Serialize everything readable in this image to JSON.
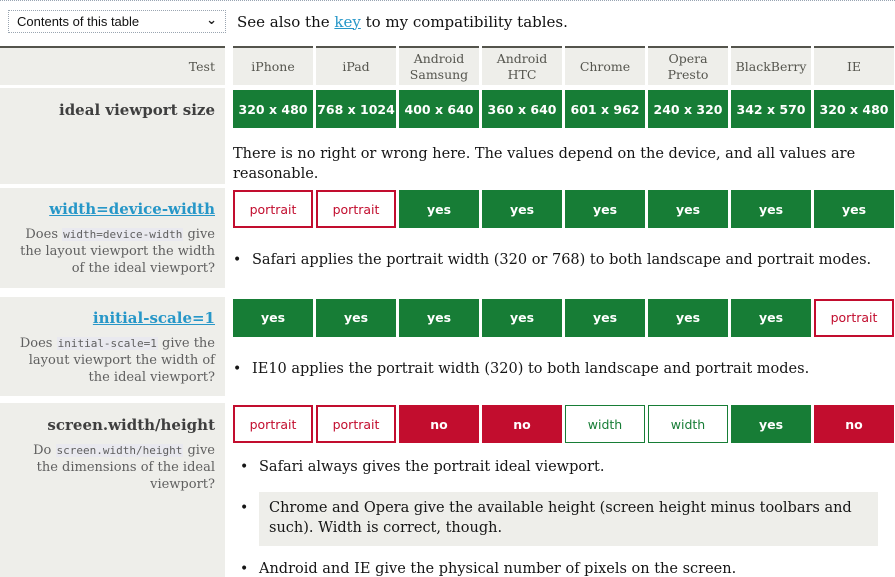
{
  "icons": {
    "chevron_down": "⌄",
    "bullet": "•"
  },
  "colors": {
    "green": "#177d36",
    "red": "#c20d2e",
    "link_blue": "#2797c8",
    "row_bg": "#eeeeea"
  },
  "toolbar": {
    "select_value": "Contents of this table",
    "see_also_prefix": "See also the ",
    "key_link_label": "key",
    "see_also_suffix": " to my compatibility tables."
  },
  "table": {
    "header": {
      "test_label": "Test",
      "columns": [
        "iPhone",
        "iPad",
        "Android Samsung",
        "Android HTC",
        "Chrome",
        "Opera Presto",
        "BlackBerry",
        "IE"
      ]
    },
    "sections": [
      {
        "title": "ideal viewport size",
        "cells": [
          {
            "text": "320 x 480",
            "state": "green-solid"
          },
          {
            "text": "768 x 1024",
            "state": "green-solid"
          },
          {
            "text": "400 x 640",
            "state": "green-solid"
          },
          {
            "text": "360 x 640",
            "state": "green-solid"
          },
          {
            "text": "601 x 962",
            "state": "green-solid"
          },
          {
            "text": "240 x 320",
            "state": "green-solid"
          },
          {
            "text": "342 x 570",
            "state": "green-solid"
          },
          {
            "text": "320 x 480",
            "state": "green-solid"
          }
        ],
        "notes": [
          {
            "text": "There is no right or wrong here. The values depend on the device, and all values are reasonable.",
            "bullet": false,
            "highlight": false
          }
        ]
      },
      {
        "title": "width=device-width",
        "desc_prefix": "Does ",
        "desc_code": "width=device-width",
        "desc_suffix": " give the layout viewport the width of the ideal viewport?",
        "cells": [
          {
            "text": "portrait",
            "state": "red-outline"
          },
          {
            "text": "portrait",
            "state": "red-outline"
          },
          {
            "text": "yes",
            "state": "green-solid"
          },
          {
            "text": "yes",
            "state": "green-solid"
          },
          {
            "text": "yes",
            "state": "green-solid"
          },
          {
            "text": "yes",
            "state": "green-solid"
          },
          {
            "text": "yes",
            "state": "green-solid"
          },
          {
            "text": "yes",
            "state": "green-solid"
          }
        ],
        "notes": [
          {
            "text": "Safari applies the portrait width (320 or 768) to both landscape and portrait modes.",
            "bullet": true,
            "highlight": false
          }
        ]
      },
      {
        "title": "initial-scale=1",
        "desc_prefix": "Does ",
        "desc_code": "initial-scale=1",
        "desc_suffix": " give the layout viewport the width of the ideal viewport?",
        "cells": [
          {
            "text": "yes",
            "state": "green-solid"
          },
          {
            "text": "yes",
            "state": "green-solid"
          },
          {
            "text": "yes",
            "state": "green-solid"
          },
          {
            "text": "yes",
            "state": "green-solid"
          },
          {
            "text": "yes",
            "state": "green-solid"
          },
          {
            "text": "yes",
            "state": "green-solid"
          },
          {
            "text": "yes",
            "state": "green-solid"
          },
          {
            "text": "portrait",
            "state": "red-outline"
          }
        ],
        "notes": [
          {
            "text": "IE10 applies the portrait width (320) to both landscape and portrait modes.",
            "bullet": true,
            "highlight": false
          }
        ]
      },
      {
        "title": "screen.width/height",
        "desc_prefix": "Do ",
        "desc_code": "screen.width/height",
        "desc_suffix": " give the dimensions of the ideal viewport?",
        "cells": [
          {
            "text": "portrait",
            "state": "red-outline"
          },
          {
            "text": "portrait",
            "state": "red-outline"
          },
          {
            "text": "no",
            "state": "red-solid"
          },
          {
            "text": "no",
            "state": "red-solid"
          },
          {
            "text": "width",
            "state": "green-outline"
          },
          {
            "text": "width",
            "state": "green-outline"
          },
          {
            "text": "yes",
            "state": "green-solid"
          },
          {
            "text": "no",
            "state": "red-solid"
          }
        ],
        "notes": [
          {
            "text": "Safari always gives the portrait ideal viewport.",
            "bullet": true,
            "highlight": false
          },
          {
            "text": "Chrome and Opera give the available height (screen height minus toolbars and such). Width is correct, though.",
            "bullet": true,
            "highlight": true
          },
          {
            "text": "Android and IE give the physical number of pixels on the screen.",
            "bullet": true,
            "highlight": false
          }
        ]
      }
    ]
  }
}
